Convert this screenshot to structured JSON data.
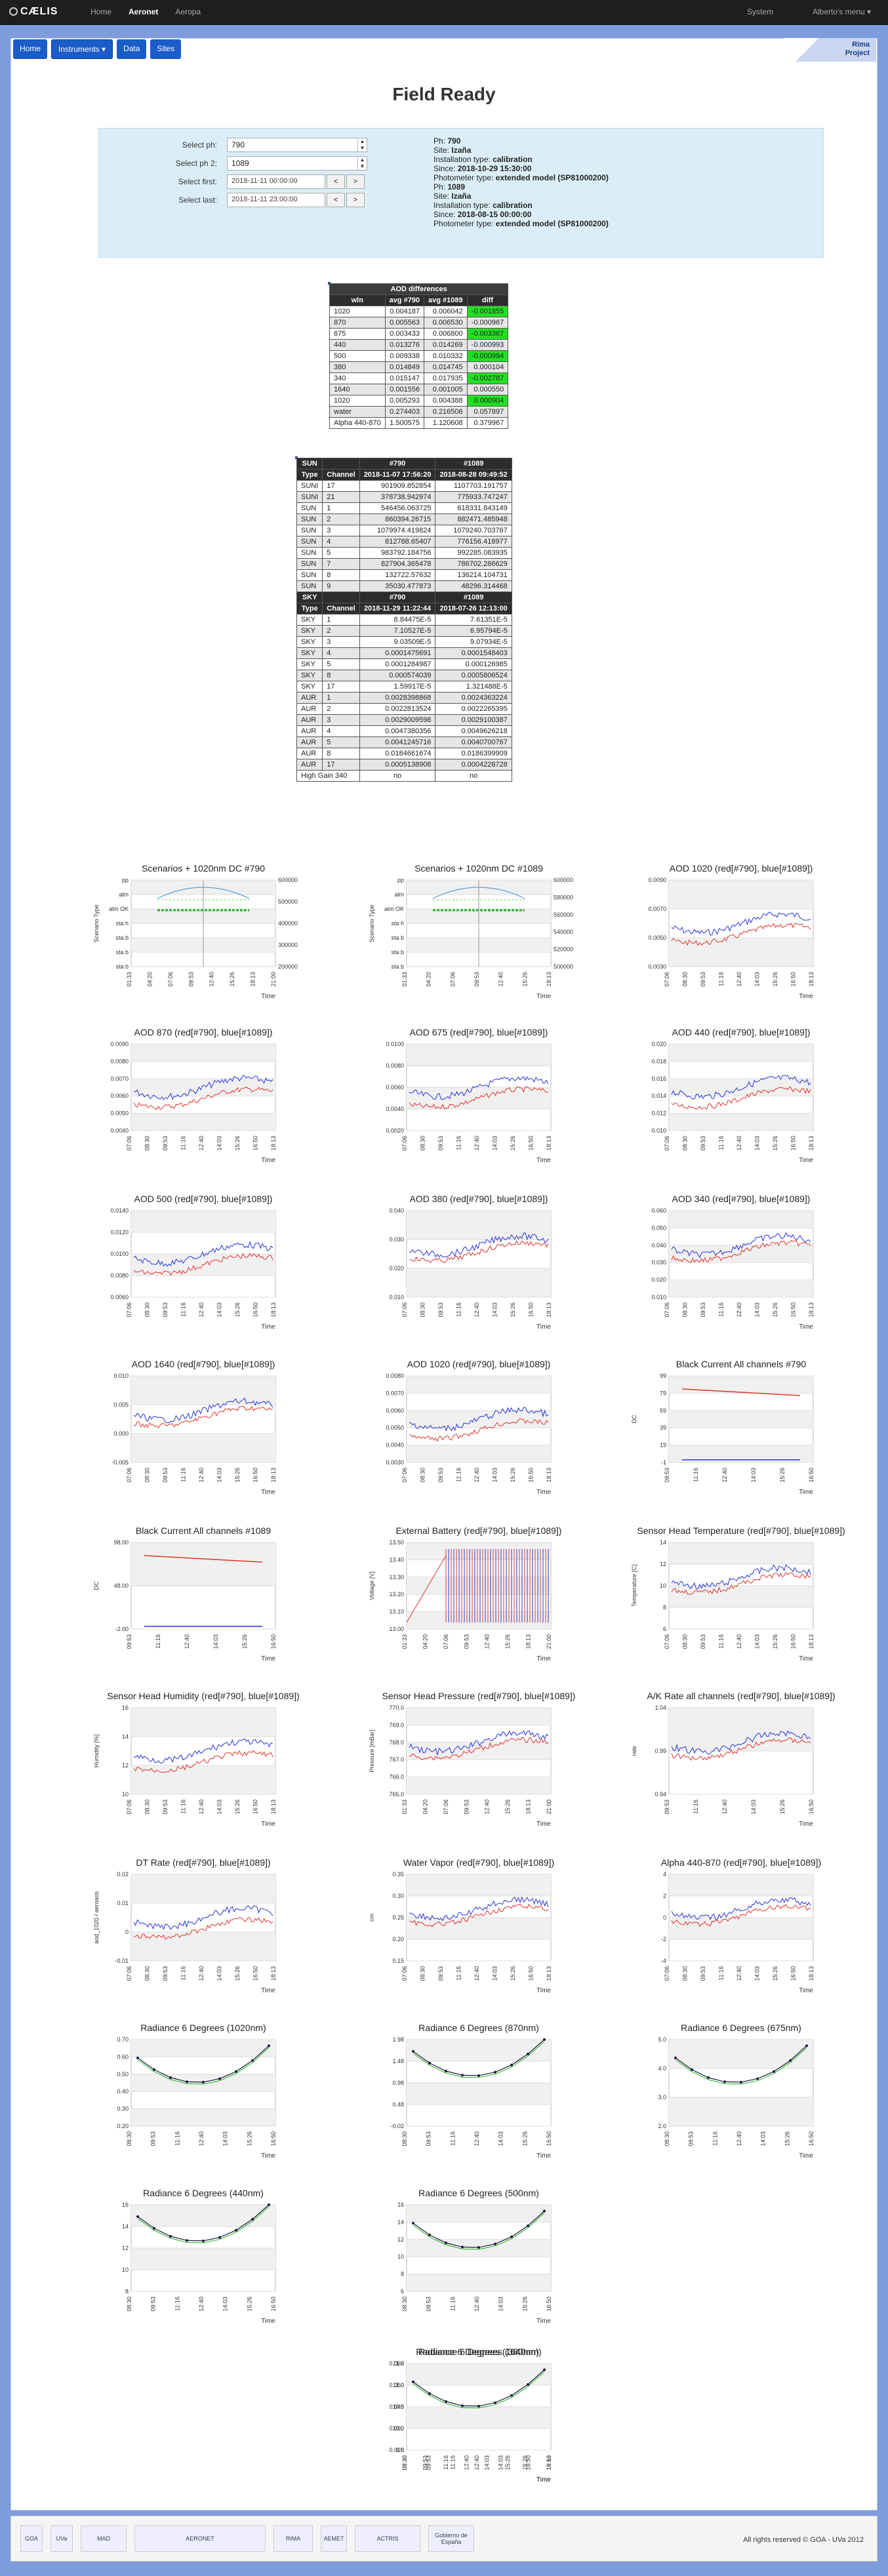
{
  "nav": {
    "brand": "CÆLIS",
    "items": [
      "Home",
      "Aeronet",
      "Aeropa"
    ],
    "right": [
      "System",
      "Alberto's menu ▾"
    ]
  },
  "subnav": [
    "Home",
    "Instruments ▾",
    "Data",
    "Sites"
  ],
  "rima": {
    "line1": "Rima",
    "line2": "Project"
  },
  "page_title": "Field Ready",
  "form": {
    "ph_label": "Select ph:",
    "ph_value": "790",
    "ph2_label": "Select ph 2:",
    "ph2_value": "1089",
    "first_label": "Select first:",
    "first_value": "2018-11-11 00:00:00",
    "last_label": "Select last:",
    "last_value": "2018-11-11 23:00:00",
    "prev": "<",
    "next": ">"
  },
  "ph1": {
    "ph": "790",
    "site": "Izaña",
    "installation": "calibration",
    "since": "2018-10-29 15:30:00",
    "model": "extended model (SP81000200)"
  },
  "ph2": {
    "ph": "1089",
    "site": "Izaña",
    "installation": "calibration",
    "since": "2018-08-15 00:00:00",
    "model": "extended model (SP81000200)"
  },
  "labels": {
    "ph": "Ph:",
    "site": "Site:",
    "inst": "Installation type:",
    "since": "Since:",
    "model": "Photometer type:"
  },
  "aod": {
    "title": "AOD differences",
    "headers": [
      "wln",
      "avg #790",
      "avg #1089",
      "diff"
    ],
    "rows": [
      [
        "1020",
        "0.004187",
        "0.006042",
        "-0.001855"
      ],
      [
        "870",
        "0.005563",
        "0.006530",
        "-0.000967"
      ],
      [
        "675",
        "0.003433",
        "0.006800",
        "-0.003367"
      ],
      [
        "440",
        "0.013276",
        "0.014269",
        "-0.000993"
      ],
      [
        "500",
        "0.009338",
        "0.010332",
        "-0.000994"
      ],
      [
        "380",
        "0.014849",
        "0.014745",
        "0.000104"
      ],
      [
        "340",
        "0.015147",
        "0.017935",
        "-0.002787"
      ],
      [
        "1640",
        "0.001556",
        "0.001005",
        "0.000550"
      ],
      [
        "1020",
        "0.005293",
        "0.004388",
        "0.000904"
      ],
      [
        "water",
        "0.274403",
        "0.216506",
        "0.057897"
      ],
      [
        "Alpha 440-870",
        "1.500575",
        "1.120608",
        "0.379967"
      ]
    ],
    "green": [
      0,
      1,
      2,
      3,
      4,
      5,
      6,
      7,
      8
    ]
  },
  "cal": {
    "sun_headers": [
      "SUN",
      "",
      "#790",
      "#1089"
    ],
    "sub_headers": [
      "Type",
      "Channel",
      "2018-11-07 17:56:20",
      "2018-08-28 09:49:52"
    ],
    "sun_rows": [
      [
        "SUNI",
        "17",
        "901909.852854",
        "1107703.191757"
      ],
      [
        "SUNI",
        "21",
        "378738.942974",
        "775933.747247"
      ],
      [
        "SUN",
        "1",
        "546456.063725",
        "618331.843149"
      ],
      [
        "SUN",
        "2",
        "860394.26715",
        "882471.485948"
      ],
      [
        "SUN",
        "3",
        "1079974.419824",
        "1079240.703767"
      ],
      [
        "SUN",
        "4",
        "812788.65407",
        "776156.418977"
      ],
      [
        "SUN",
        "5",
        "983792.184756",
        "992285.083935"
      ],
      [
        "SUN",
        "7",
        "827904.365478",
        "786702.286629"
      ],
      [
        "SUN",
        "8",
        "132722.57632",
        "136214.104731"
      ],
      [
        "SUN",
        "9",
        "35030.477873",
        "48296.314468"
      ]
    ],
    "sky_headers": [
      "SKY",
      "",
      "#790",
      "#1089"
    ],
    "sky_sub": [
      "Type",
      "Channel",
      "2018-11-29 11:22:44",
      "2018-07-26 12:13:00"
    ],
    "sky_rows": [
      [
        "SKY",
        "1",
        "8.84475E-5",
        "7.61351E-5"
      ],
      [
        "SKY",
        "2",
        "7.10527E-5",
        "6.95794E-5"
      ],
      [
        "SKY",
        "3",
        "9.03509E-5",
        "9.07934E-5"
      ],
      [
        "SKY",
        "4",
        "0.0001475691",
        "0.0001548403"
      ],
      [
        "SKY",
        "5",
        "0.0001284987",
        "0.000126985"
      ],
      [
        "SKY",
        "8",
        "0.000574039",
        "0.0005806524"
      ],
      [
        "SKY",
        "17",
        "1.59917E-5",
        "1.321488E-5"
      ],
      [
        "AUR",
        "1",
        "0.0028398868",
        "0.0024363224"
      ],
      [
        "AUR",
        "2",
        "0.0022813524",
        "0.0022265395"
      ],
      [
        "AUR",
        "3",
        "0.0029009598",
        "0.0029100387"
      ],
      [
        "AUR",
        "4",
        "0.0047380356",
        "0.0049626218"
      ],
      [
        "AUR",
        "5",
        "0.0041245716",
        "0.0040700767"
      ],
      [
        "AUR",
        "8",
        "0.0184661674",
        "0.0186399909"
      ],
      [
        "AUR",
        "17",
        "0.0005138908",
        "0.0004228728"
      ]
    ],
    "gain_row": [
      "High Gain 340",
      "no",
      "no"
    ]
  },
  "chart_data": [
    {
      "type": "scatter",
      "title": "Scenarios + 1020nm DC #790",
      "ylabel": "Scenario Type",
      "yticks": [
        "pp",
        "alm",
        "alm OK",
        "sta h",
        "sta b",
        "sta b",
        "sta b"
      ],
      "y2ticks": [
        "600000",
        "500000",
        "400000",
        "300000",
        "200000"
      ],
      "xticks": [
        "01:33",
        "04:20",
        "07:06",
        "09:53",
        "12:40",
        "15:26",
        "18:13",
        "21:00"
      ],
      "xlabel": "Time"
    },
    {
      "type": "scatter",
      "title": "Scenarios + 1020nm DC #1089",
      "ylabel": "Scenario Type",
      "yticks": [
        "pp",
        "alm",
        "alm OK",
        "sta h",
        "sta b",
        "sta b",
        "sta b"
      ],
      "y2ticks": [
        "600000",
        "580000",
        "560000",
        "540000",
        "520000",
        "500000"
      ],
      "xticks": [
        "01:33",
        "04:20",
        "07:06",
        "09:53",
        "12:40",
        "15:26",
        "18:13"
      ],
      "xlabel": "Time"
    },
    {
      "type": "line",
      "title": "AOD 1020 (red[#790], blue[#1089])",
      "yticks": [
        "0.0090",
        "0.0070",
        "0.0050",
        "0.0030"
      ],
      "xticks": [
        "07:06",
        "08:30",
        "09:53",
        "11:16",
        "12:40",
        "14:03",
        "15:26",
        "16:50",
        "18:13"
      ],
      "xlabel": "Time"
    },
    {
      "type": "line",
      "title": "AOD 870 (red[#790], blue[#1089])",
      "yticks": [
        "0.0090",
        "0.0080",
        "0.0070",
        "0.0060",
        "0.0050",
        "0.0040"
      ],
      "xticks": [
        "07:06",
        "08:30",
        "09:53",
        "11:16",
        "12:40",
        "14:03",
        "15:26",
        "16:50",
        "18:13"
      ],
      "xlabel": "Time"
    },
    {
      "type": "line",
      "title": "AOD 675 (red[#790], blue[#1089])",
      "yticks": [
        "0.0100",
        "0.0080",
        "0.0060",
        "0.0040",
        "0.0020"
      ],
      "xticks": [
        "07:06",
        "08:30",
        "09:53",
        "11:16",
        "12:40",
        "14:03",
        "15:26",
        "16:50",
        "18:13"
      ],
      "xlabel": "Time"
    },
    {
      "type": "line",
      "title": "AOD 440 (red[#790], blue[#1089])",
      "yticks": [
        "0.020",
        "0.018",
        "0.016",
        "0.014",
        "0.012",
        "0.010"
      ],
      "xticks": [
        "07:06",
        "08:30",
        "09:53",
        "11:16",
        "12:40",
        "14:03",
        "15:26",
        "16:50",
        "18:13"
      ],
      "xlabel": "Time"
    },
    {
      "type": "line",
      "title": "AOD 500 (red[#790], blue[#1089])",
      "yticks": [
        "0.0140",
        "0.0120",
        "0.0100",
        "0.0080",
        "0.0060"
      ],
      "xticks": [
        "07:06",
        "08:30",
        "09:53",
        "11:16",
        "12:40",
        "14:03",
        "15:26",
        "16:50",
        "18:13"
      ],
      "xlabel": "Time"
    },
    {
      "type": "line",
      "title": "AOD 380 (red[#790], blue[#1089])",
      "yticks": [
        "0.040",
        "0.030",
        "0.020",
        "0.010"
      ],
      "xticks": [
        "07:06",
        "08:30",
        "09:53",
        "11:16",
        "12:40",
        "14:03",
        "15:26",
        "16:50",
        "18:13"
      ],
      "xlabel": "Time"
    },
    {
      "type": "line",
      "title": "AOD 340 (red[#790], blue[#1089])",
      "yticks": [
        "0.060",
        "0.050",
        "0.040",
        "0.030",
        "0.020",
        "0.010"
      ],
      "xticks": [
        "07:06",
        "08:30",
        "09:53",
        "11:16",
        "12:40",
        "14:03",
        "15:26",
        "16:50",
        "18:13"
      ],
      "xlabel": "Time"
    },
    {
      "type": "line",
      "title": "AOD 1640 (red[#790], blue[#1089])",
      "yticks": [
        "0.010",
        "0.005",
        "0.000",
        "-0.005"
      ],
      "xticks": [
        "07:06",
        "08:30",
        "09:53",
        "11:16",
        "12:40",
        "14:03",
        "15:26",
        "16:50",
        "18:13"
      ],
      "xlabel": "Time"
    },
    {
      "type": "line",
      "title": "AOD 1020 (red[#790], blue[#1089])",
      "yticks": [
        "0.0080",
        "0.0070",
        "0.0060",
        "0.0050",
        "0.0040",
        "0.0030"
      ],
      "xticks": [
        "07:06",
        "08:30",
        "09:53",
        "11:16",
        "12:40",
        "14:03",
        "15:26",
        "16:50",
        "18:13"
      ],
      "xlabel": "Time"
    },
    {
      "type": "line",
      "title": "Black Current All channels #790",
      "ylabel": "DC",
      "yticks": [
        "99",
        "79",
        "59",
        "39",
        "19",
        "-1"
      ],
      "xticks": [
        "09:53",
        "11:16",
        "12:40",
        "14:03",
        "15:26",
        "16:50"
      ],
      "xlabel": "Time"
    },
    {
      "type": "line",
      "title": "Black Current All channels #1089",
      "ylabel": "DC",
      "yticks": [
        "98.00",
        "48.00",
        "-2.00"
      ],
      "xticks": [
        "09:53",
        "11:16",
        "12:40",
        "14:03",
        "15:26",
        "16:50"
      ],
      "xlabel": "Time"
    },
    {
      "type": "line",
      "title": "External Battery (red[#790], blue[#1089])",
      "ylabel": "Voltage [V]",
      "yticks": [
        "13.50",
        "13.40",
        "13.30",
        "13.20",
        "13.10",
        "13.00"
      ],
      "xticks": [
        "01:33",
        "04:20",
        "07:06",
        "09:53",
        "12:40",
        "15:26",
        "18:13",
        "21:00"
      ],
      "xlabel": "Time"
    },
    {
      "type": "line",
      "title": "Sensor Head Temperature (red[#790], blue[#1089])",
      "ylabel": "Temperature [C]",
      "yticks": [
        "14",
        "12",
        "10",
        "8",
        "6"
      ],
      "xticks": [
        "07:06",
        "08:30",
        "09:53",
        "11:16",
        "12:40",
        "14:03",
        "15:26",
        "16:50",
        "18:13"
      ],
      "xlabel": "Time"
    },
    {
      "type": "line",
      "title": "Sensor Head Humidity (red[#790], blue[#1089])",
      "ylabel": "Humidity [%]",
      "yticks": [
        "16",
        "14",
        "12",
        "10"
      ],
      "xticks": [
        "07:06",
        "08:30",
        "09:53",
        "11:16",
        "12:40",
        "14:03",
        "15:26",
        "16:50",
        "18:13"
      ],
      "xlabel": "Time"
    },
    {
      "type": "line",
      "title": "Sensor Head Pressure (red[#790], blue[#1089])",
      "ylabel": "Pressure [mBar]",
      "yticks": [
        "770.0",
        "769.0",
        "768.0",
        "767.0",
        "766.0",
        "765.0"
      ],
      "xticks": [
        "01:33",
        "04:20",
        "07:06",
        "09:53",
        "12:40",
        "15:26",
        "18:13",
        "21:00"
      ],
      "xlabel": "Time"
    },
    {
      "type": "line",
      "title": "A/K Rate all channels (red[#790], blue[#1089])",
      "ylabel": "rate",
      "yticks": [
        "1.04",
        "0.99",
        "0.94"
      ],
      "xticks": [
        "09:53",
        "11:16",
        "12:40",
        "14:03",
        "15:26",
        "16:50"
      ],
      "xlabel": "Time"
    },
    {
      "type": "line",
      "title": "DT Rate (red[#790], blue[#1089])",
      "ylabel": "aod_1020 / aeroaos",
      "yticks": [
        "0.02",
        "0.01",
        "0",
        "-0.01"
      ],
      "xticks": [
        "07:06",
        "08:30",
        "09:53",
        "11:16",
        "12:40",
        "14:03",
        "15:26",
        "16:50",
        "18:13"
      ],
      "xlabel": "Time"
    },
    {
      "type": "line",
      "title": "Water Vapor (red[#790], blue[#1089])",
      "ylabel": "cm",
      "yticks": [
        "0.35",
        "0.30",
        "0.25",
        "0.20",
        "0.15"
      ],
      "xticks": [
        "07:06",
        "08:30",
        "09:53",
        "11:16",
        "12:40",
        "14:03",
        "15:26",
        "16:50",
        "18:13"
      ],
      "xlabel": "Time"
    },
    {
      "type": "line",
      "title": "Alpha 440-870 (red[#790], blue[#1089])",
      "yticks": [
        "4",
        "2",
        "0",
        "-2",
        "-4"
      ],
      "xticks": [
        "07:06",
        "08:30",
        "09:53",
        "11:16",
        "12:40",
        "14:03",
        "15:26",
        "16:50",
        "18:13"
      ],
      "xlabel": "Time"
    },
    {
      "type": "line",
      "title": "Radiance 6 Degrees (1020nm)",
      "yticks": [
        "0.70",
        "0.60",
        "0.50",
        "0.40",
        "0.30",
        "0.20"
      ],
      "xticks": [
        "08:30",
        "09:53",
        "11:16",
        "12:40",
        "14:03",
        "15:26",
        "16:50"
      ],
      "xlabel": "Time"
    },
    {
      "type": "line",
      "title": "Radiance 6 Degrees (870nm)",
      "yticks": [
        "1.98",
        "1.48",
        "0.98",
        "0.48",
        "-0.02"
      ],
      "xticks": [
        "08:30",
        "09:53",
        "11:16",
        "12:40",
        "14:03",
        "15:26",
        "16:50"
      ],
      "xlabel": "Time"
    },
    {
      "type": "line",
      "title": "Radiance 6 Degrees (675nm)",
      "yticks": [
        "5.0",
        "4.0",
        "3.0",
        "2.0"
      ],
      "xticks": [
        "08:30",
        "09:53",
        "11:16",
        "12:40",
        "14:03",
        "15:26",
        "16:50"
      ],
      "xlabel": "Time"
    },
    {
      "type": "line",
      "title": "Radiance 6 Degrees (440nm)",
      "yticks": [
        "16",
        "14",
        "12",
        "10",
        "8"
      ],
      "xticks": [
        "08:30",
        "09:53",
        "11:16",
        "12:40",
        "14:03",
        "15:26",
        "16:50"
      ],
      "xlabel": "Time"
    },
    {
      "type": "line",
      "title": "Radiance 6 Degrees (500nm)",
      "yticks": [
        "16",
        "14",
        "12",
        "10",
        "8",
        "6"
      ],
      "xticks": [
        "08:30",
        "09:53",
        "11:16",
        "12:40",
        "14:03",
        "15:26",
        "16:50"
      ],
      "xlabel": "Time"
    },
    {
      "type": "line",
      "title": "Radiance 6 Degrees (380nm)",
      "yticks": [
        "11.5",
        "11.0",
        "10.5",
        "10.0",
        "9.5"
      ],
      "xticks": [
        "08:30",
        "09:53",
        "11:16",
        "12:40",
        "14:03",
        "15:26",
        "16:50"
      ],
      "xlabel": "Time"
    },
    {
      "type": "line",
      "title": "Radiance 6 Degrees (1640nm)",
      "yticks": [
        "0.060",
        "0.050",
        "0.040",
        "0.030",
        "0.020"
      ],
      "xticks": [
        "08:30",
        "09:53",
        "11:16",
        "12:40",
        "14:03",
        "15:26",
        "16:50",
        "18:13"
      ],
      "xlabel": "Time"
    }
  ],
  "footer": {
    "copyright": "All rights reserved © GOA - UVa 2012",
    "logos": [
      "GOA",
      "UVa",
      "MAD",
      "AERONET",
      "RIMA",
      "AEMET",
      "ACTRIS",
      "Gobierno de España"
    ]
  },
  "colors": {
    "red": "#e0332a",
    "blue": "#2433d6",
    "green": "#20b020",
    "grey": "#999999"
  }
}
